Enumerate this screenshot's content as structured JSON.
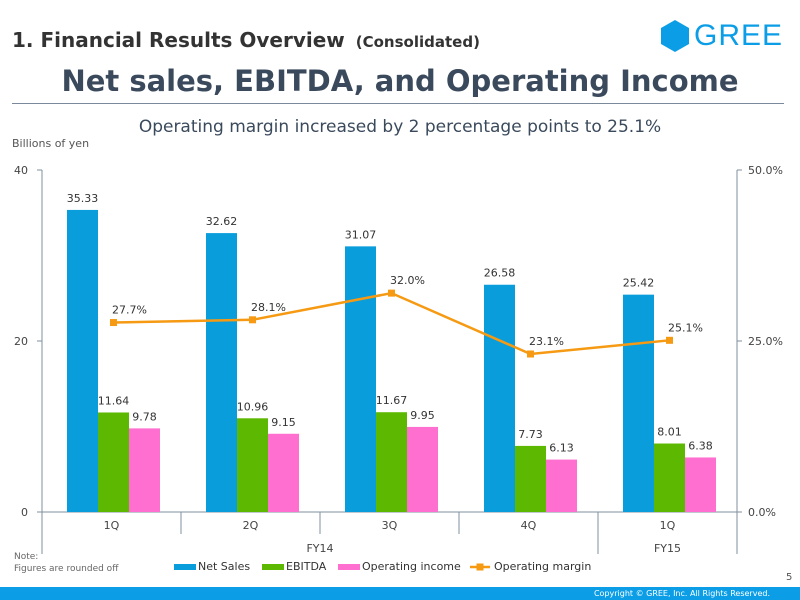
{
  "header": {
    "section_title": "1. Financial Results Overview",
    "section_subtitle": "(Consolidated)",
    "logo_text": "GREE",
    "main_title": "Net sales, EBITDA, and Operating Income",
    "headline": "Operating margin increased by 2 percentage points to 25.1%"
  },
  "unit_label": "Billions of yen",
  "note": {
    "line1": "Note:",
    "line2": "Figures are rounded off"
  },
  "page_number": "5",
  "copyright": "Copyright © GREE, Inc. All Rights Reserved.",
  "colors": {
    "net_sales": "#0a9ddb",
    "ebitda": "#5cb800",
    "operating_income": "#ff6fcf",
    "operating_margin": "#f59a12",
    "brand": "#0b9ee6"
  },
  "chart_data": {
    "type": "bar",
    "categories": [
      "1Q",
      "2Q",
      "3Q",
      "4Q",
      "1Q"
    ],
    "groups": [
      {
        "label": "FY14",
        "categories": [
          "1Q",
          "2Q",
          "3Q",
          "4Q"
        ]
      },
      {
        "label": "FY15",
        "categories": [
          "1Q"
        ]
      }
    ],
    "series": [
      {
        "name": "Net Sales",
        "values": [
          35.33,
          32.62,
          31.07,
          26.58,
          25.42
        ],
        "labels": [
          "35.33",
          "32.62",
          "31.07",
          "26.58",
          "25.42"
        ]
      },
      {
        "name": "EBITDA",
        "values": [
          11.64,
          10.96,
          11.67,
          7.73,
          8.01
        ],
        "labels": [
          "11.64",
          "10.96",
          "11.67",
          "7.73",
          "8.01"
        ]
      },
      {
        "name": "Operating income",
        "values": [
          9.78,
          9.15,
          9.95,
          6.13,
          6.38
        ],
        "labels": [
          "9.78",
          "9.15",
          "9.95",
          "6.13",
          "6.38"
        ]
      }
    ],
    "line_series": {
      "name": "Operating margin",
      "values": [
        27.7,
        28.1,
        32.0,
        23.1,
        25.1
      ],
      "labels": [
        "27.7%",
        "28.1%",
        "32.0%",
        "23.1%",
        "25.1%"
      ],
      "axis": "right"
    },
    "y_left": {
      "ylim": [
        0,
        40
      ],
      "ticks": [
        0,
        20,
        40
      ],
      "tick_labels": [
        "0",
        "20",
        "40"
      ]
    },
    "y_right": {
      "ylim": [
        0,
        50
      ],
      "ticks": [
        0,
        25,
        50
      ],
      "tick_labels": [
        "0.0%",
        "25.0%",
        "50.0%"
      ]
    },
    "legend": [
      "Net Sales",
      "EBITDA",
      "Operating income",
      "Operating margin"
    ],
    "legend_position": "bottom"
  }
}
